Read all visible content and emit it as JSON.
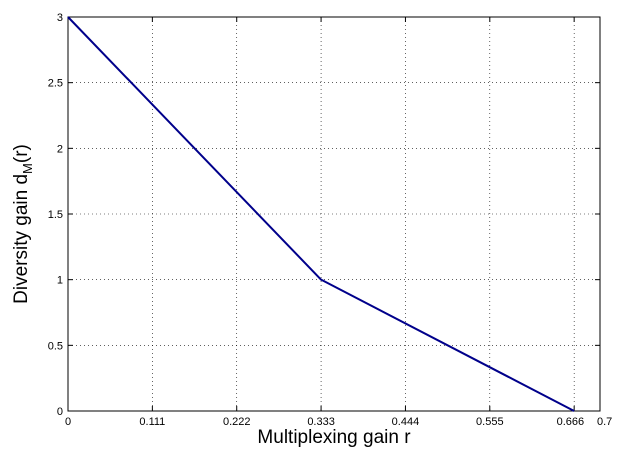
{
  "chart_data": {
    "type": "line",
    "title": "",
    "xlabel": "Multiplexing gain r",
    "ylabel_main": "Diversity gain d",
    "ylabel_sub": "M",
    "ylabel_tail": "(r)",
    "xlim": [
      0,
      0.7
    ],
    "ylim": [
      0,
      3
    ],
    "grid": true,
    "line_color": "#00008b",
    "x_ticks": [
      0,
      0.111,
      0.222,
      0.333,
      0.444,
      0.555,
      0.666,
      0.7
    ],
    "x_tick_labels": [
      "0",
      "0.111",
      "0.222",
      "0.333",
      "0.444",
      "0.555",
      "0.666",
      "0.7"
    ],
    "y_ticks": [
      0,
      0.5,
      1,
      1.5,
      2,
      2.5,
      3
    ],
    "y_tick_labels": [
      "0",
      "0.5",
      "1",
      "1.5",
      "2",
      "2.5",
      "3"
    ],
    "series": [
      {
        "x": [
          0,
          0.333,
          0.666
        ],
        "y": [
          3,
          1,
          0
        ]
      }
    ]
  }
}
